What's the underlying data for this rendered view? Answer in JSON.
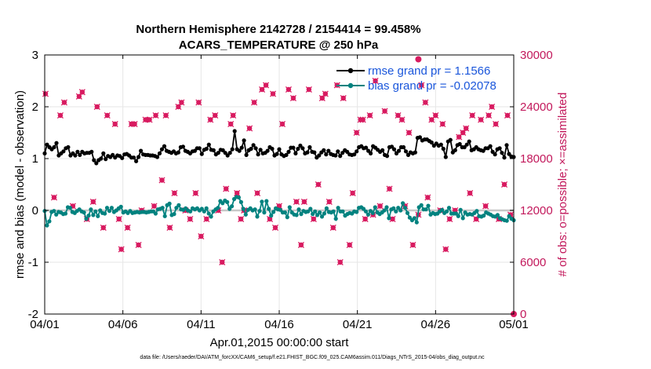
{
  "chart_data": {
    "type": "line",
    "title_line1": "Northern Hemisphere 2142728 / 2154414 = 99.458%",
    "title_line2": "ACARS_TEMPERATURE @ 250 hPa",
    "xlabel": "Apr.01,2015 00:00:00 start",
    "ylabel_left": "rmse and bias (model - observation)",
    "ylabel_right": "# of obs: o=possible; ×=assimilated",
    "footer": "data file: /Users/raeder/DAI/ATM_forcXX/CAM6_setup/f.e21.FHIST_BGC.f09_025.CAM6assim.011/Diags_NTrS_2015-04/obs_diag_output.nc",
    "xlim_days": [
      0,
      30
    ],
    "ylim_left": [
      -2,
      3
    ],
    "ylim_right": [
      0,
      30000
    ],
    "x_tick_labels": [
      "04/01",
      "04/06",
      "04/11",
      "04/16",
      "04/21",
      "04/26",
      "05/01"
    ],
    "x_tick_days": [
      0,
      5,
      10,
      15,
      20,
      25,
      30
    ],
    "y_left_ticks": [
      "-2",
      "-1",
      "0",
      "1",
      "2",
      "3"
    ],
    "y_left_tick_values": [
      -2,
      -1,
      0,
      1,
      2,
      3
    ],
    "y_right_ticks": [
      "0",
      "6000",
      "12000",
      "18000",
      "24000",
      "30000"
    ],
    "y_right_tick_values": [
      0,
      6000,
      12000,
      18000,
      24000,
      30000
    ],
    "grid": true,
    "legend_position": "top-right",
    "colors": {
      "rmse": "#000000",
      "bias": "#00827f",
      "obs": "#d81b60",
      "zero_line": "#c8c8c8",
      "legend_text": "#1a56db"
    },
    "series": [
      {
        "name": "rmse grand pr = 1.1566",
        "role": "rmse",
        "values": [
          1.1,
          1.27,
          1.22,
          1.18,
          1.22,
          1.3,
          1.06,
          1.1,
          1.14,
          1.2,
          1.22,
          1.06,
          1.1,
          1.06,
          1.13,
          1.07,
          1.13,
          1.1,
          1.11,
          1.11,
          1.13,
          0.97,
          0.91,
          0.97,
          1.0,
          1.1,
          0.99,
          1.05,
          1.03,
          1.07,
          1.02,
          1.06,
          1.05,
          1.01,
          1.08,
          1.09,
          1.06,
          1.02,
          1.02,
          0.95,
          1.03,
          1.15,
          1.08,
          1.07,
          1.07,
          1.06,
          1.06,
          1.05,
          1.03,
          1.1,
          1.18,
          1.24,
          1.15,
          1.13,
          1.11,
          1.14,
          1.1,
          1.12,
          1.22,
          1.23,
          1.15,
          1.13,
          1.1,
          1.14,
          1.15,
          1.2,
          1.2,
          1.09,
          1.17,
          1.19,
          1.27,
          1.17,
          1.16,
          1.08,
          1.11,
          1.17,
          1.16,
          1.11,
          1.06,
          1.11,
          1.18,
          1.53,
          1.18,
          1.15,
          1.21,
          1.35,
          1.07,
          1.16,
          1.19,
          1.26,
          1.2,
          1.08,
          1.17,
          1.1,
          1.11,
          1.15,
          1.22,
          1.19,
          1.06,
          1.09,
          1.18,
          1.08,
          1.05,
          1.07,
          1.13,
          1.21,
          1.21,
          1.1,
          1.19,
          1.25,
          1.2,
          1.1,
          1.12,
          1.22,
          1.13,
          1.12,
          1.02,
          1.06,
          1.12,
          1.16,
          1.08,
          1.15,
          1.09,
          1.07,
          1.06,
          1.14,
          1.05,
          1.11,
          1.16,
          1.13,
          1.08,
          1.07,
          1.08,
          1.14,
          1.22,
          1.24,
          1.2,
          1.21,
          1.15,
          1.1,
          1.24,
          1.21,
          1.17,
          1.13,
          1.16,
          1.07,
          1.05,
          1.22,
          1.23,
          1.18,
          1.1,
          1.15,
          1.22,
          1.22,
          1.14,
          1.07,
          1.12,
          1.1,
          1.12,
          1.4,
          1.41,
          1.35,
          1.37,
          1.37,
          1.34,
          1.31,
          1.25,
          1.29,
          1.25,
          1.27,
          1.19,
          1.03,
          1.33,
          1.36,
          1.12,
          1.16,
          1.26,
          1.28,
          1.22,
          1.22,
          1.27,
          1.33,
          1.16,
          1.18,
          1.22,
          1.18,
          1.16,
          1.15,
          1.2,
          1.2,
          1.24,
          1.13,
          1.08,
          1.18,
          1.2,
          1.11,
          1.02,
          1.26,
          1.09,
          1.04,
          1.03
        ]
      },
      {
        "name": "bias grand pr = -0.02078",
        "role": "bias",
        "values": [
          -0.01,
          -0.29,
          -0.21,
          -0.03,
          -0.01,
          -0.08,
          -0.03,
          -0.04,
          -0.07,
          -0.06,
          0.06,
          0.05,
          -0.03,
          -0.05,
          -0.01,
          0.02,
          -0.02,
          -0.04,
          -0.16,
          -0.1,
          0.02,
          -0.09,
          -0.02,
          -0.11,
          0.0,
          -0.05,
          -0.06,
          0.05,
          -0.01,
          0.05,
          -0.03,
          0.0,
          0.04,
          0.07,
          -0.04,
          -0.02,
          -0.05,
          -0.01,
          -0.05,
          -0.04,
          -0.03,
          -0.04,
          -0.03,
          -0.03,
          -0.04,
          -0.03,
          -0.02,
          -0.02,
          -0.06,
          0.02,
          0.03,
          0.05,
          -0.11,
          0.1,
          0.13,
          -0.09,
          -0.07,
          0.05,
          0.1,
          0.02,
          0.01,
          0.04,
          0.0,
          -0.02,
          0.04,
          0.02,
          0.04,
          0.0,
          0.03,
          -0.02,
          0.04,
          -0.06,
          -0.12,
          -0.02,
          0.02,
          0.05,
          0.18,
          0.14,
          0.19,
          0.16,
          0.03,
          0.08,
          0.22,
          0.26,
          0.25,
          0.16,
          0.03,
          -0.08,
          0.01,
          0.04,
          0.0,
          0.02,
          -0.12,
          -0.01,
          0.17,
          -0.04,
          0.18,
          0.03,
          -0.1,
          -0.03,
          0.04,
          0.02,
          0.01,
          -0.04,
          -0.04,
          -0.13,
          0.06,
          -0.04,
          -0.08,
          -0.09,
          0.02,
          -0.07,
          -0.01,
          -0.03,
          -0.02,
          0.03,
          -0.07,
          -0.02,
          -0.09,
          -0.04,
          -0.12,
          -0.06,
          0.04,
          -0.03,
          -0.04,
          -0.02,
          -0.16,
          0.05,
          -0.02,
          -0.02,
          -0.1,
          -0.07,
          -0.05,
          -0.06,
          -0.02,
          -0.03,
          0.05,
          0.06,
          0.03,
          -0.02,
          -0.08,
          -0.01,
          -0.05,
          0.06,
          -0.04,
          -0.07,
          -0.04,
          0.0,
          0.06,
          -0.15,
          0.02,
          0.04,
          -0.02,
          0.05,
          0.0,
          0.14,
          0.05,
          -0.05,
          -0.14,
          -0.19,
          -0.15,
          -0.23,
          0.06,
          0.1,
          0.02,
          0.02,
          0.09,
          -0.08,
          -0.05,
          -0.07,
          -0.06,
          -0.02,
          0.01,
          -0.05,
          -0.02,
          0.05,
          -0.06,
          -0.06,
          -0.06,
          -0.11,
          0.01,
          -0.15,
          -0.04,
          -0.08,
          -0.07,
          -0.08,
          -0.05,
          -0.01,
          -0.11,
          -0.12,
          -0.1,
          -0.04,
          -0.06,
          -0.08,
          -0.11,
          -0.12,
          -0.09,
          -0.15,
          -0.17,
          -0.19,
          -0.2,
          -0.11,
          -0.16,
          -0.19
        ]
      }
    ],
    "obs_assimilated": [
      {
        "day": 0.05,
        "value": 25500
      },
      {
        "day": 0.6,
        "value": 13500
      },
      {
        "day": 1.0,
        "value": 23000
      },
      {
        "day": 1.25,
        "value": 24500
      },
      {
        "day": 1.8,
        "value": 12500
      },
      {
        "day": 2.2,
        "value": 25200
      },
      {
        "day": 2.4,
        "value": 25700
      },
      {
        "day": 2.7,
        "value": 11000
      },
      {
        "day": 3.1,
        "value": 13000
      },
      {
        "day": 3.35,
        "value": 24000
      },
      {
        "day": 3.75,
        "value": 10000
      },
      {
        "day": 4.0,
        "value": 23000
      },
      {
        "day": 4.5,
        "value": 22000
      },
      {
        "day": 4.75,
        "value": 11000
      },
      {
        "day": 4.9,
        "value": 7500
      },
      {
        "day": 5.3,
        "value": 10000
      },
      {
        "day": 5.55,
        "value": 22000
      },
      {
        "day": 5.75,
        "value": 22000
      },
      {
        "day": 6.0,
        "value": 8000
      },
      {
        "day": 6.2,
        "value": 12000
      },
      {
        "day": 6.45,
        "value": 22500
      },
      {
        "day": 6.7,
        "value": 22500
      },
      {
        "day": 7.0,
        "value": 12500
      },
      {
        "day": 7.1,
        "value": 23000
      },
      {
        "day": 7.5,
        "value": 15500
      },
      {
        "day": 7.75,
        "value": 23000
      },
      {
        "day": 8.0,
        "value": 10000
      },
      {
        "day": 8.3,
        "value": 14000
      },
      {
        "day": 8.55,
        "value": 24000
      },
      {
        "day": 8.75,
        "value": 24500
      },
      {
        "day": 9.0,
        "value": 12000
      },
      {
        "day": 9.3,
        "value": 11000
      },
      {
        "day": 9.65,
        "value": 14000
      },
      {
        "day": 9.85,
        "value": 24500
      },
      {
        "day": 10.0,
        "value": 9000
      },
      {
        "day": 10.35,
        "value": 11000
      },
      {
        "day": 10.6,
        "value": 22500
      },
      {
        "day": 10.9,
        "value": 23000
      },
      {
        "day": 11.1,
        "value": 12000
      },
      {
        "day": 11.35,
        "value": 6000
      },
      {
        "day": 11.6,
        "value": 14500
      },
      {
        "day": 11.9,
        "value": 22000
      },
      {
        "day": 12.05,
        "value": 23000
      },
      {
        "day": 12.3,
        "value": 14000
      },
      {
        "day": 12.55,
        "value": 11000
      },
      {
        "day": 12.75,
        "value": 12000
      },
      {
        "day": 13.1,
        "value": 21500
      },
      {
        "day": 13.4,
        "value": 24500
      },
      {
        "day": 13.6,
        "value": 14000
      },
      {
        "day": 13.9,
        "value": 26000
      },
      {
        "day": 14.15,
        "value": 26500
      },
      {
        "day": 14.4,
        "value": 11000
      },
      {
        "day": 14.6,
        "value": 25500
      },
      {
        "day": 14.75,
        "value": 10000
      },
      {
        "day": 15.0,
        "value": 12500
      },
      {
        "day": 15.2,
        "value": 22000
      },
      {
        "day": 15.6,
        "value": 26000
      },
      {
        "day": 15.9,
        "value": 25000
      },
      {
        "day": 16.1,
        "value": 13000
      },
      {
        "day": 16.4,
        "value": 8000
      },
      {
        "day": 16.6,
        "value": 13000
      },
      {
        "day": 16.9,
        "value": 26000
      },
      {
        "day": 17.2,
        "value": 11000
      },
      {
        "day": 17.5,
        "value": 15000
      },
      {
        "day": 17.75,
        "value": 25000
      },
      {
        "day": 17.95,
        "value": 25500
      },
      {
        "day": 18.2,
        "value": 13000
      },
      {
        "day": 18.45,
        "value": 10000
      },
      {
        "day": 18.7,
        "value": 26500
      },
      {
        "day": 18.9,
        "value": 6000
      },
      {
        "day": 19.1,
        "value": 25000
      },
      {
        "day": 19.5,
        "value": 8000
      },
      {
        "day": 19.7,
        "value": 14000
      },
      {
        "day": 19.95,
        "value": 21000
      },
      {
        "day": 20.2,
        "value": 22500
      },
      {
        "day": 20.35,
        "value": 22500
      },
      {
        "day": 20.5,
        "value": 11000
      },
      {
        "day": 20.8,
        "value": 23000
      },
      {
        "day": 21.0,
        "value": 11500
      },
      {
        "day": 21.15,
        "value": 27000
      },
      {
        "day": 21.45,
        "value": 12500
      },
      {
        "day": 21.75,
        "value": 23500
      },
      {
        "day": 22.05,
        "value": 14500
      },
      {
        "day": 22.25,
        "value": 11000
      },
      {
        "day": 22.6,
        "value": 23000
      },
      {
        "day": 22.85,
        "value": 22500
      },
      {
        "day": 23.05,
        "value": 12500
      },
      {
        "day": 23.3,
        "value": 21000
      },
      {
        "day": 23.55,
        "value": 8000
      },
      {
        "day": 23.9,
        "value": 11500
      },
      {
        "day": 24.1,
        "value": 26500
      },
      {
        "day": 24.35,
        "value": 24500
      },
      {
        "day": 24.5,
        "value": 13500
      },
      {
        "day": 24.75,
        "value": 22500
      },
      {
        "day": 25.0,
        "value": 23000
      },
      {
        "day": 25.3,
        "value": 12000
      },
      {
        "day": 25.45,
        "value": 22000
      },
      {
        "day": 25.65,
        "value": 7500
      },
      {
        "day": 25.9,
        "value": 11000
      },
      {
        "day": 26.25,
        "value": 12000
      },
      {
        "day": 26.5,
        "value": 20500
      },
      {
        "day": 26.75,
        "value": 21000
      },
      {
        "day": 26.95,
        "value": 21500
      },
      {
        "day": 27.2,
        "value": 14000
      },
      {
        "day": 27.35,
        "value": 23000
      },
      {
        "day": 27.6,
        "value": 11000
      },
      {
        "day": 27.9,
        "value": 22500
      },
      {
        "day": 28.2,
        "value": 12500
      },
      {
        "day": 28.4,
        "value": 23000
      },
      {
        "day": 28.6,
        "value": 24000
      },
      {
        "day": 28.85,
        "value": 22000
      },
      {
        "day": 29.05,
        "value": 11000
      },
      {
        "day": 29.4,
        "value": 15000
      },
      {
        "day": 29.6,
        "value": 23000
      },
      {
        "day": 29.8,
        "value": 11500
      }
    ],
    "obs_possible": [
      {
        "day": 23.9,
        "value": 29500
      },
      {
        "day": 30.0,
        "value": 0
      }
    ]
  }
}
